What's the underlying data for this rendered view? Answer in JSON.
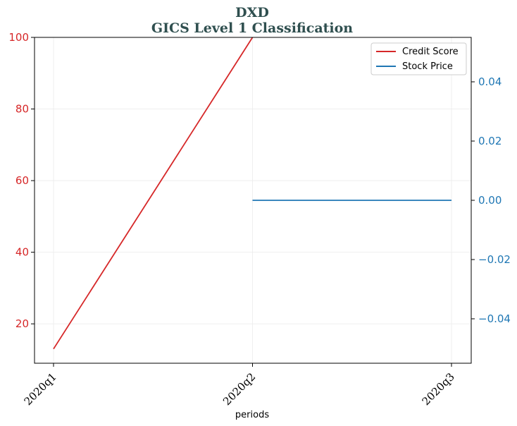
{
  "chart_data": {
    "type": "line",
    "title": "DXD",
    "subtitle": "GICS Level 1 Classification",
    "xlabel": "periods",
    "categories": [
      "2020q1",
      "2020q2",
      "2020q3"
    ],
    "y_left": {
      "ticks": [
        "20",
        "40",
        "60",
        "80",
        "100"
      ],
      "tick_values": [
        20,
        40,
        60,
        80,
        100
      ],
      "ylim": [
        9,
        100
      ],
      "color": "#d62728"
    },
    "y_right": {
      "ticks": [
        "−0.04",
        "−0.02",
        "0.00",
        "0.02",
        "0.04"
      ],
      "tick_values": [
        -0.04,
        -0.02,
        0.0,
        0.02,
        0.04
      ],
      "ylim": [
        -0.055,
        0.055
      ],
      "color": "#1f77b4"
    },
    "series": [
      {
        "name": "Credit Score",
        "axis": "left",
        "color": "#d62728",
        "values": [
          13,
          100,
          null
        ]
      },
      {
        "name": "Stock Price",
        "axis": "right",
        "color": "#1f77b4",
        "values": [
          null,
          0.0,
          0.0
        ]
      }
    ],
    "grid": true,
    "legend_position": "top-right"
  }
}
